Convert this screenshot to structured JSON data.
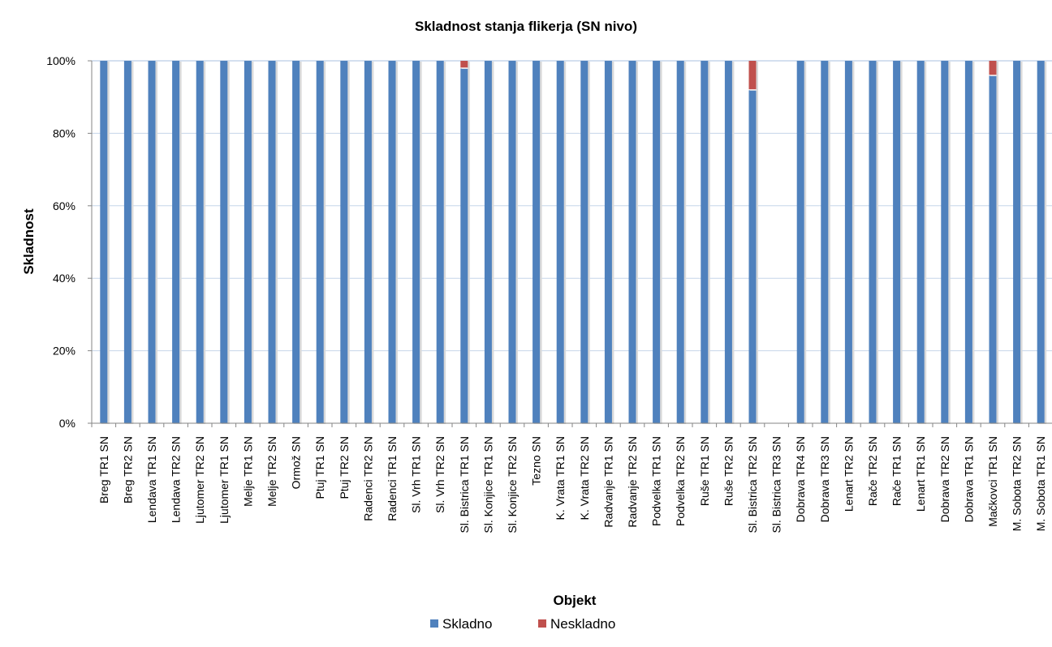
{
  "chart_data": {
    "type": "bar",
    "stacked": true,
    "percent": true,
    "title": "Skladnost stanja flikerja (SN nivo)",
    "xlabel": "Objekt",
    "ylabel": "Skladnost",
    "ylim": [
      0,
      100
    ],
    "yticks": [
      "0%",
      "20%",
      "40%",
      "60%",
      "80%",
      "100%"
    ],
    "grid": true,
    "legend_position": "bottom",
    "categories": [
      "Breg TR1 SN",
      "Breg TR2 SN",
      "Lendava TR1 SN",
      "Lendava TR2 SN",
      "Ljutomer TR2 SN",
      "Ljutomer TR1 SN",
      "Melje TR1 SN",
      "Melje TR2 SN",
      "Ormož SN",
      "Ptuj TR1 SN",
      "Ptuj TR2 SN",
      "Radenci TR2 SN",
      "Radenci TR1 SN",
      "Sl. Vrh TR1 SN",
      "Sl. Vrh TR2 SN",
      "Sl. Bistrica TR1 SN",
      "Sl. Konjice TR1 SN",
      "Sl. Konjice TR2 SN",
      "Tezno SN",
      "K. Vrata TR1 SN",
      "K. Vrata TR2 SN",
      "Radvanje TR1 SN",
      "Radvanje TR2 SN",
      "Podvelka TR1 SN",
      "Podvelka TR2 SN",
      "Ruše TR1 SN",
      "Ruše TR2 SN",
      "Sl. Bistrica TR2 SN",
      "Sl. Bistrica TR3 SN",
      "Dobrava TR4 SN",
      "Dobrava TR3 SN",
      "Lenart TR2 SN",
      "Rače TR2 SN",
      "Rače TR1 SN",
      "Lenart TR1 SN",
      "Dobrava TR2 SN",
      "Dobrava TR1 SN",
      "Mačkovci TR1 SN",
      "M. Sobota TR2 SN",
      "M. Sobota TR1 SN"
    ],
    "series": [
      {
        "name": "Skladno",
        "color": "#4f81bd",
        "values": [
          100,
          100,
          100,
          100,
          100,
          100,
          100,
          100,
          100,
          100,
          100,
          100,
          100,
          100,
          100,
          98,
          100,
          100,
          100,
          100,
          100,
          100,
          100,
          100,
          100,
          100,
          100,
          92,
          0,
          100,
          100,
          100,
          100,
          100,
          100,
          100,
          100,
          96,
          100,
          100
        ]
      },
      {
        "name": "Neskladno",
        "color": "#c0504d",
        "values": [
          0,
          0,
          0,
          0,
          0,
          0,
          0,
          0,
          0,
          0,
          0,
          0,
          0,
          0,
          0,
          2,
          0,
          0,
          0,
          0,
          0,
          0,
          0,
          0,
          0,
          0,
          0,
          8,
          0,
          0,
          0,
          0,
          0,
          0,
          0,
          0,
          0,
          4,
          0,
          0
        ]
      }
    ]
  }
}
